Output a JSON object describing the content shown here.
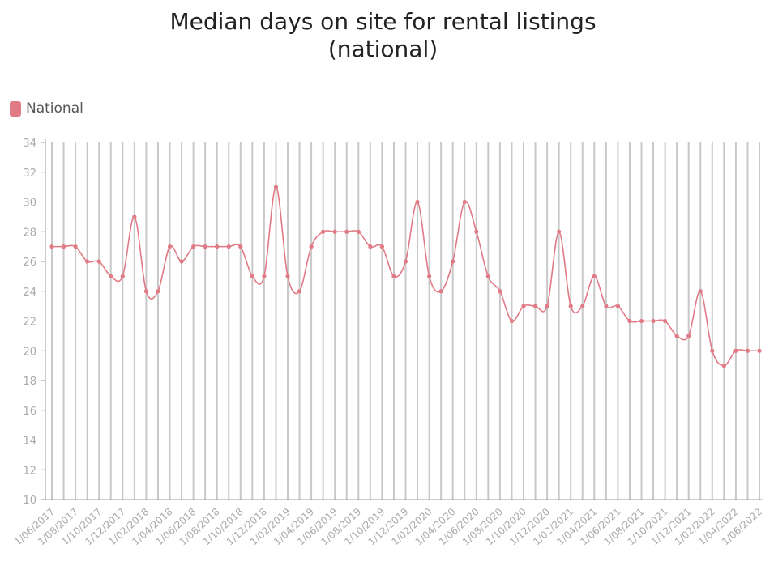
{
  "colors": {
    "series": "#e07a85",
    "vline": "#c8c8c8",
    "axis": "#999999",
    "tick_text": "#aaaaaa"
  },
  "chart_data": {
    "type": "line",
    "title_lines": [
      "Median days on site for rental listings",
      "(national)"
    ],
    "legend": {
      "position": "top-left",
      "label": "National"
    },
    "ylim": [
      10,
      34
    ],
    "yticks": [
      10,
      12,
      14,
      16,
      18,
      20,
      22,
      24,
      26,
      28,
      30,
      32,
      34
    ],
    "grid": "vertical",
    "xlabels": [
      "1/06/2017",
      "1/08/2017",
      "1/10/2017",
      "1/12/2017",
      "1/02/2018",
      "1/04/2018",
      "1/06/2018",
      "1/08/2018",
      "1/10/2018",
      "1/12/2018",
      "1/02/2019",
      "1/04/2019",
      "1/06/2019",
      "1/08/2019",
      "1/10/2019",
      "1/12/2019",
      "1/02/2020",
      "1/04/2020",
      "1/06/2020",
      "1/08/2020",
      "1/10/2020",
      "1/12/2020",
      "1/02/2021",
      "1/04/2021",
      "1/06/2021",
      "1/08/2021",
      "1/10/2021",
      "1/12/2021",
      "1/02/2022",
      "1/04/2022",
      "1/06/2022"
    ],
    "series": [
      {
        "name": "National",
        "values": [
          27,
          27,
          27,
          26,
          26,
          25,
          25,
          29,
          24,
          24,
          27,
          26,
          27,
          27,
          27,
          27,
          27,
          25,
          25,
          31,
          25,
          24,
          27,
          28,
          28,
          28,
          28,
          27,
          27,
          25,
          26,
          30,
          25,
          24,
          26,
          30,
          28,
          25,
          24,
          22,
          23,
          23,
          23,
          28,
          23,
          23,
          25,
          23,
          23,
          22,
          22,
          22,
          22,
          21,
          21,
          24,
          20,
          19,
          20,
          20,
          20
        ]
      }
    ]
  }
}
